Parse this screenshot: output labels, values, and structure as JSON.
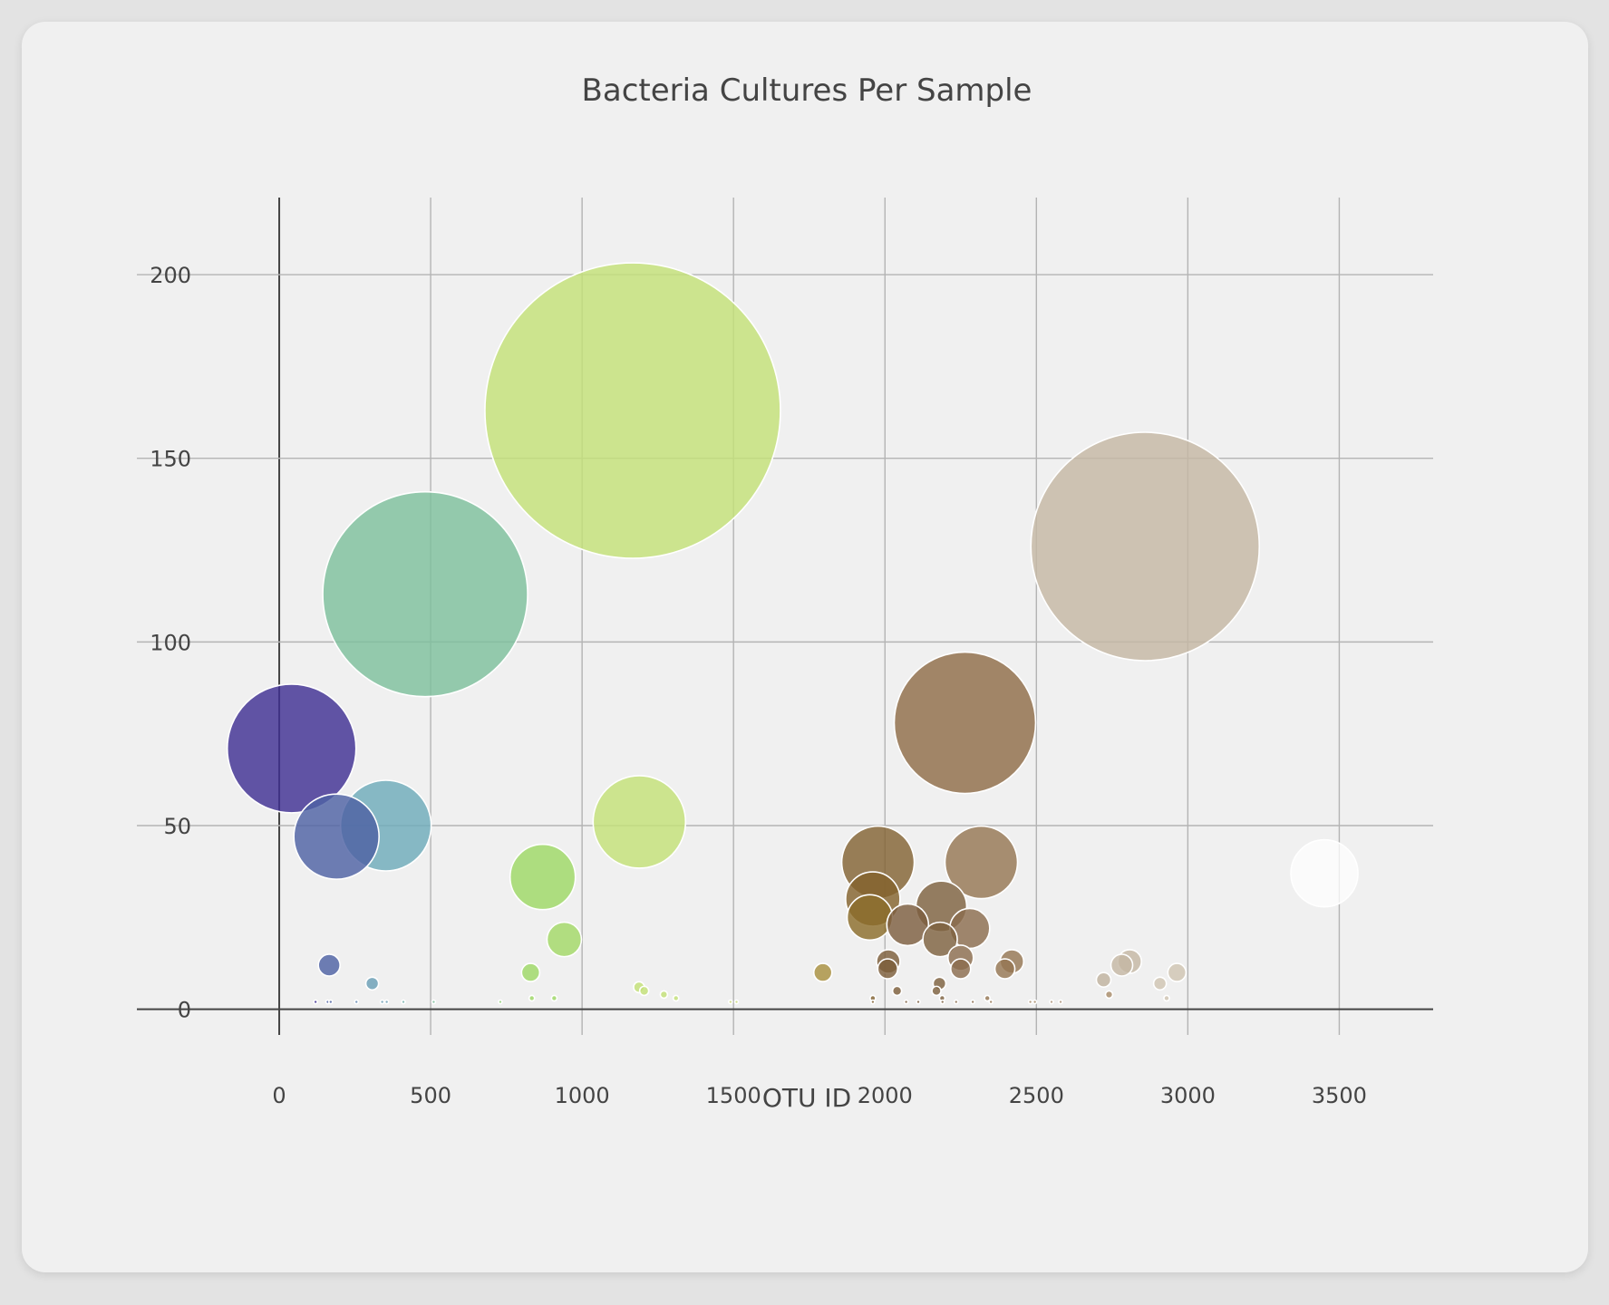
{
  "colors": {
    "background": "#e3e3e3",
    "card": "#f0f0f0",
    "text": "#444444",
    "grid": "#b4b4b4"
  },
  "chart_data": {
    "type": "scatter",
    "subtype": "bubble",
    "title": "Bacteria Cultures Per Sample",
    "xlabel": "OTU ID",
    "ylabel": "",
    "xlim": [
      -470,
      3810
    ],
    "ylim": [
      -7,
      221
    ],
    "x_ticks": [
      0,
      500,
      1000,
      1500,
      2000,
      2500,
      3000,
      3500
    ],
    "y_ticks": [
      0,
      50,
      100,
      150,
      200
    ],
    "grid": true,
    "legend": "none",
    "size_encoding": "bubble size proportional to sample value",
    "color_encoding": "continuous colorscale by OTU ID (purple → teal → green → yellow-green → brown → tan → white)",
    "points": [
      {
        "x": 41,
        "y": 71,
        "color": "#3f2f93"
      },
      {
        "x": 189,
        "y": 47,
        "color": "#4e62a4"
      },
      {
        "x": 352,
        "y": 50,
        "color": "#6eabb9"
      },
      {
        "x": 482,
        "y": 113,
        "color": "#7ec09c"
      },
      {
        "x": 1167,
        "y": 163,
        "color": "#c3e077"
      },
      {
        "x": 1189,
        "y": 51,
        "color": "#c3e077"
      },
      {
        "x": 870,
        "y": 36,
        "color": "#9ed865"
      },
      {
        "x": 941,
        "y": 19,
        "color": "#a2d866"
      },
      {
        "x": 2264,
        "y": 78,
        "color": "#8f6c48"
      },
      {
        "x": 2859,
        "y": 126,
        "color": "#c4b7a4"
      },
      {
        "x": 1977,
        "y": 40,
        "color": "#836333"
      },
      {
        "x": 2318,
        "y": 40,
        "color": "#957653"
      },
      {
        "x": 1960,
        "y": 30,
        "color": "#84632d"
      },
      {
        "x": 1950,
        "y": 25,
        "color": "#8b6d2b"
      },
      {
        "x": 2186,
        "y": 28,
        "color": "#7e6140"
      },
      {
        "x": 2075,
        "y": 23,
        "color": "#7d5e3f"
      },
      {
        "x": 2182,
        "y": 19,
        "color": "#7e6140"
      },
      {
        "x": 2280,
        "y": 22,
        "color": "#8b6c4e"
      },
      {
        "x": 3451,
        "y": 37,
        "color": "#ffffff"
      },
      {
        "x": 165,
        "y": 12,
        "color": "#4e62a4"
      },
      {
        "x": 307,
        "y": 7,
        "color": "#6a9fb6"
      },
      {
        "x": 830,
        "y": 10,
        "color": "#9ed865"
      },
      {
        "x": 1795,
        "y": 10,
        "color": "#a89040"
      },
      {
        "x": 2011,
        "y": 13,
        "color": "#7d5e3a"
      },
      {
        "x": 2009,
        "y": 11,
        "color": "#7d5e3a"
      },
      {
        "x": 2250,
        "y": 14,
        "color": "#8b6c4e"
      },
      {
        "x": 2250,
        "y": 11,
        "color": "#8b6c4e"
      },
      {
        "x": 2396,
        "y": 11,
        "color": "#957653"
      },
      {
        "x": 2419,
        "y": 13,
        "color": "#957653"
      },
      {
        "x": 2808,
        "y": 13,
        "color": "#c4b7a4"
      },
      {
        "x": 2782,
        "y": 12,
        "color": "#c4b7a4"
      },
      {
        "x": 2964,
        "y": 10,
        "color": "#cfc4b2"
      },
      {
        "x": 2722,
        "y": 8,
        "color": "#bfb29f"
      },
      {
        "x": 2908,
        "y": 7,
        "color": "#cfc4b2"
      },
      {
        "x": 1188,
        "y": 6,
        "color": "#c3e077"
      },
      {
        "x": 1205,
        "y": 5,
        "color": "#c3e077"
      },
      {
        "x": 2180,
        "y": 7,
        "color": "#7e6140"
      },
      {
        "x": 2170,
        "y": 5,
        "color": "#7e6140"
      },
      {
        "x": 2040,
        "y": 5,
        "color": "#7d5e3a"
      },
      {
        "x": 2740,
        "y": 4,
        "color": "#a88c6a"
      },
      {
        "x": 1270,
        "y": 4,
        "color": "#c3e077"
      },
      {
        "x": 1310,
        "y": 3,
        "color": "#c3e077"
      },
      {
        "x": 834,
        "y": 3,
        "color": "#9ed865"
      },
      {
        "x": 908,
        "y": 3,
        "color": "#9ed865"
      },
      {
        "x": 1960,
        "y": 3,
        "color": "#836333"
      },
      {
        "x": 2189,
        "y": 3,
        "color": "#7e6140"
      },
      {
        "x": 2338,
        "y": 3,
        "color": "#957653"
      },
      {
        "x": 2930,
        "y": 3,
        "color": "#cfc4b2"
      },
      {
        "x": 120,
        "y": 2,
        "color": "#3f2f93"
      },
      {
        "x": 160,
        "y": 2,
        "color": "#4e62a4"
      },
      {
        "x": 170,
        "y": 2,
        "color": "#4e62a4"
      },
      {
        "x": 255,
        "y": 2,
        "color": "#5f86b2"
      },
      {
        "x": 340,
        "y": 2,
        "color": "#6a9fb6"
      },
      {
        "x": 355,
        "y": 2,
        "color": "#6a9fb6"
      },
      {
        "x": 410,
        "y": 2,
        "color": "#7ab5b0"
      },
      {
        "x": 510,
        "y": 2,
        "color": "#7ec09c"
      },
      {
        "x": 730,
        "y": 2,
        "color": "#93d37a"
      },
      {
        "x": 1490,
        "y": 2,
        "color": "#cddc7b"
      },
      {
        "x": 1510,
        "y": 2,
        "color": "#cddc7b"
      },
      {
        "x": 1960,
        "y": 2,
        "color": "#836333"
      },
      {
        "x": 2070,
        "y": 2,
        "color": "#7d5e3f"
      },
      {
        "x": 2110,
        "y": 2,
        "color": "#7d5e3f"
      },
      {
        "x": 2190,
        "y": 2,
        "color": "#7e6140"
      },
      {
        "x": 2235,
        "y": 2,
        "color": "#8b6c4e"
      },
      {
        "x": 2290,
        "y": 2,
        "color": "#8b6c4e"
      },
      {
        "x": 2350,
        "y": 2,
        "color": "#957653"
      },
      {
        "x": 2480,
        "y": 2,
        "color": "#a88c6a"
      },
      {
        "x": 2495,
        "y": 2,
        "color": "#a88c6a"
      },
      {
        "x": 2550,
        "y": 2,
        "color": "#ad947a"
      },
      {
        "x": 2580,
        "y": 2,
        "color": "#ad947a"
      }
    ]
  }
}
